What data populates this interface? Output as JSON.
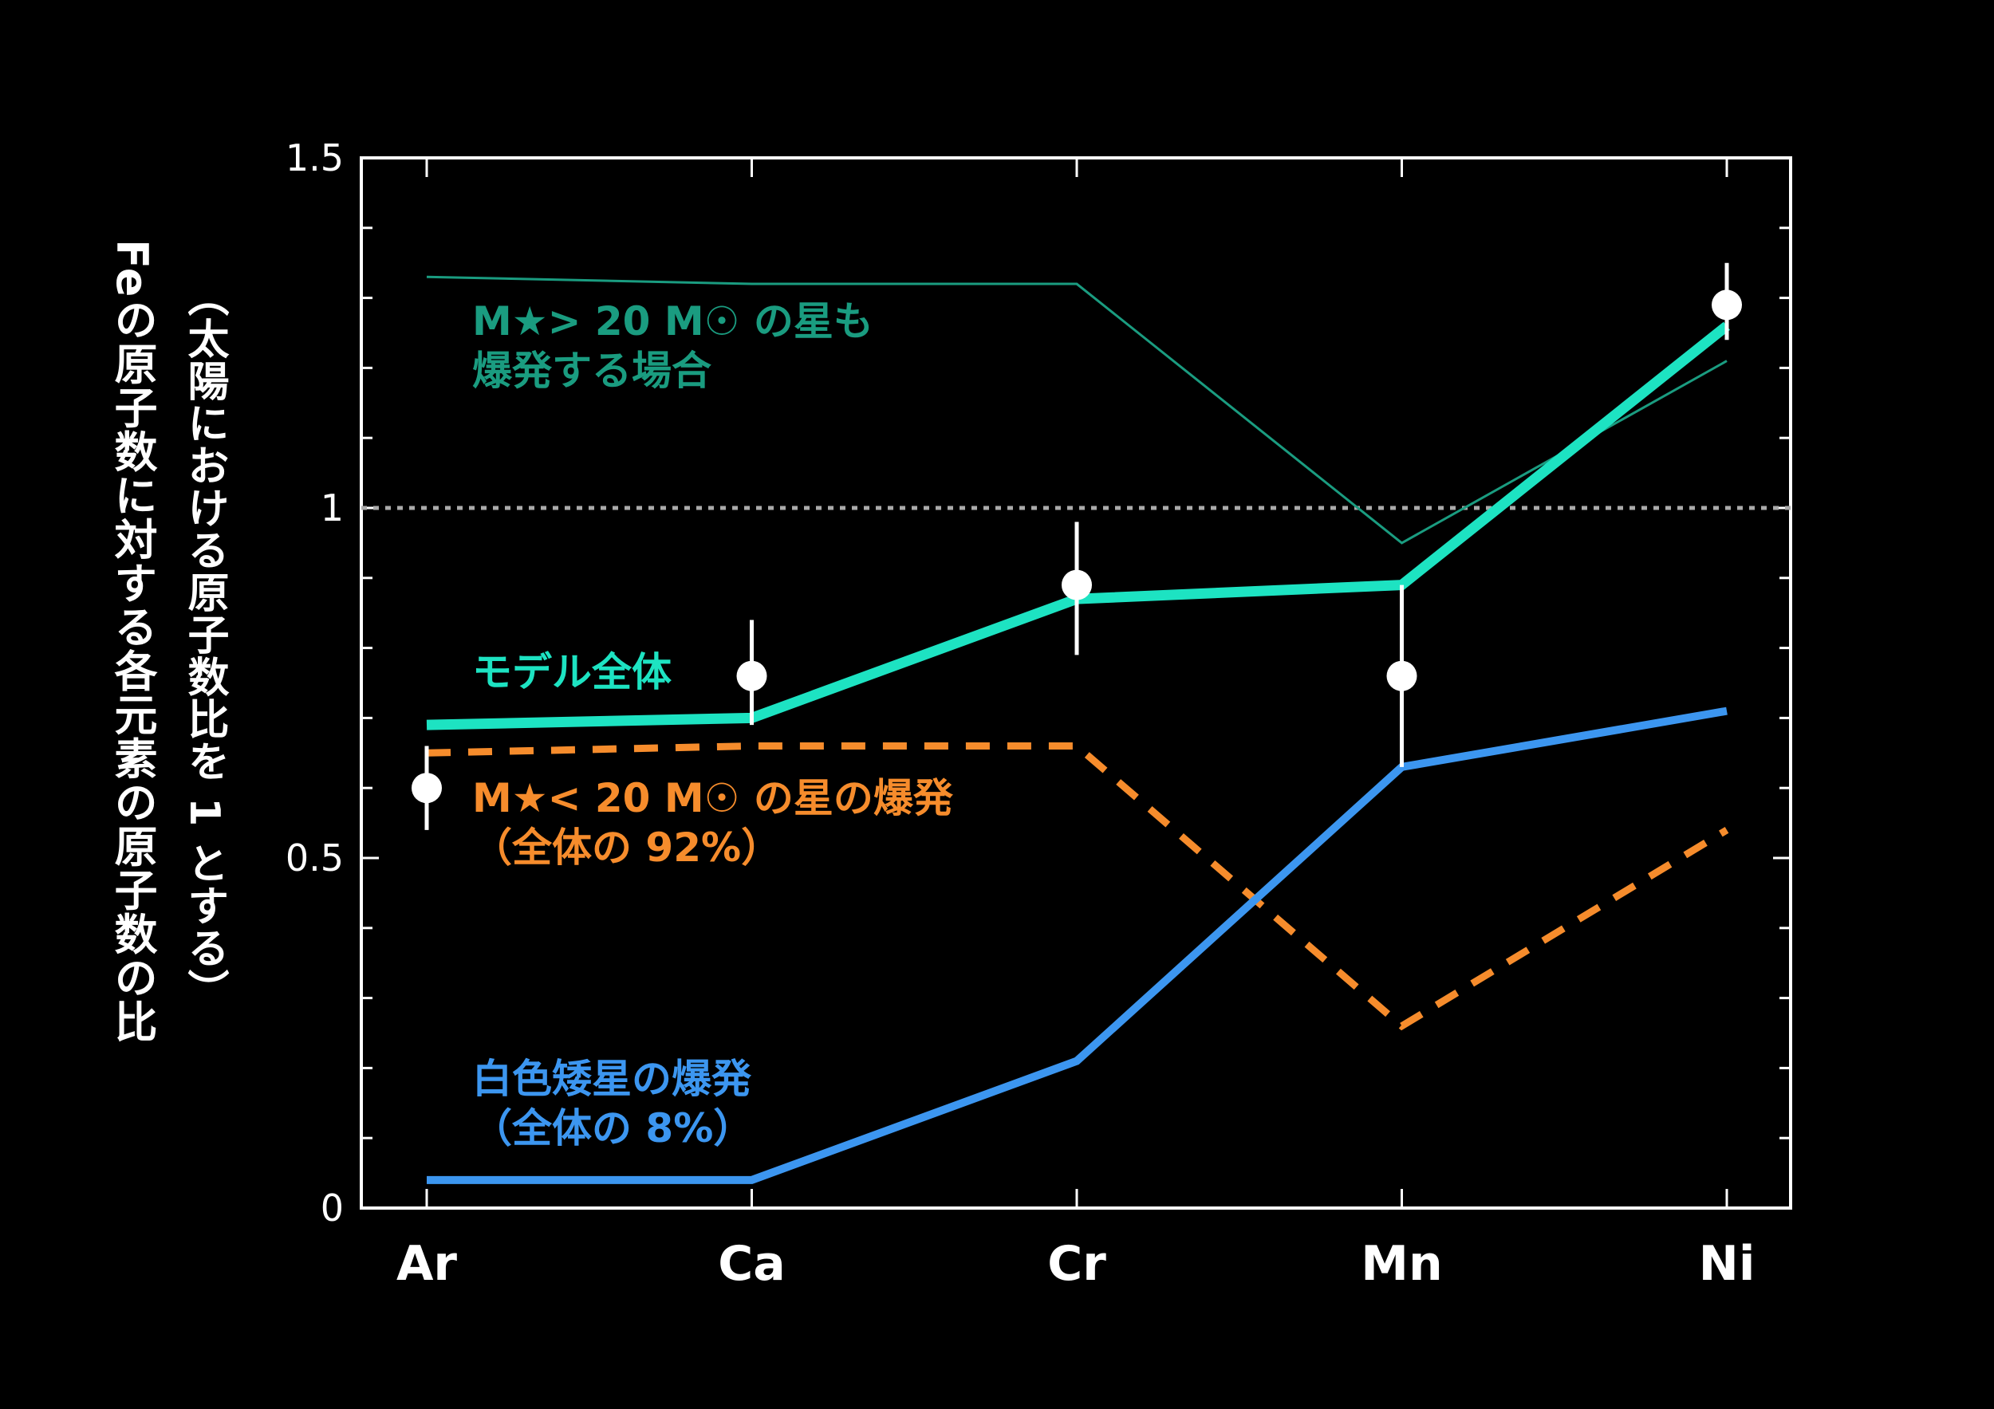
{
  "chart_data": {
    "type": "line",
    "title": "",
    "xlabel": "",
    "ylabel_line1": "Feの原子数に対する各元素の原子数の比",
    "ylabel_line2": "（太陽における原子数比を 1 とする）",
    "categories": [
      "Ar",
      "Ca",
      "Cr",
      "Mn",
      "Ni"
    ],
    "ylim": [
      0,
      1.5
    ],
    "yticks": [
      "0",
      "0.5",
      "1",
      "1.5"
    ],
    "reference_line": {
      "y": 1.0,
      "color": "#aaaaaa",
      "style": "dotted"
    },
    "series": [
      {
        "name": "M★> 20 M☉ の星も爆発する場合",
        "line1": "M★> 20 M☉ の星も",
        "line2": "爆発する場合",
        "values": [
          1.33,
          1.32,
          1.32,
          0.95,
          1.21
        ],
        "color": "#1a9c80",
        "style": "thin"
      },
      {
        "name": "モデル全体",
        "line1": "モデル全体",
        "values": [
          0.69,
          0.7,
          0.87,
          0.89,
          1.26
        ],
        "color": "#1de3c2",
        "style": "thick"
      },
      {
        "name": "M★< 20 M☉ の星の爆発（全体の 92%）",
        "line1": "M★< 20 M☉ の星の爆発",
        "line2": "（全体の 92%）",
        "values": [
          0.65,
          0.66,
          0.66,
          0.26,
          0.54
        ],
        "color": "#f68c2c",
        "style": "dashed"
      },
      {
        "name": "白色矮星の爆発（全体の 8%）",
        "line1": "白色矮星の爆発",
        "line2": "（全体の 8%）",
        "values": [
          0.04,
          0.04,
          0.21,
          0.63,
          0.71
        ],
        "color": "#3c96f0",
        "style": "solid"
      }
    ],
    "observations": {
      "values": [
        0.6,
        0.76,
        0.89,
        0.76,
        1.29
      ],
      "err_low": [
        0.06,
        0.07,
        0.1,
        0.13,
        0.05
      ],
      "err_high": [
        0.06,
        0.08,
        0.09,
        0.13,
        0.06
      ],
      "color": "#ffffff"
    },
    "grid": false
  }
}
